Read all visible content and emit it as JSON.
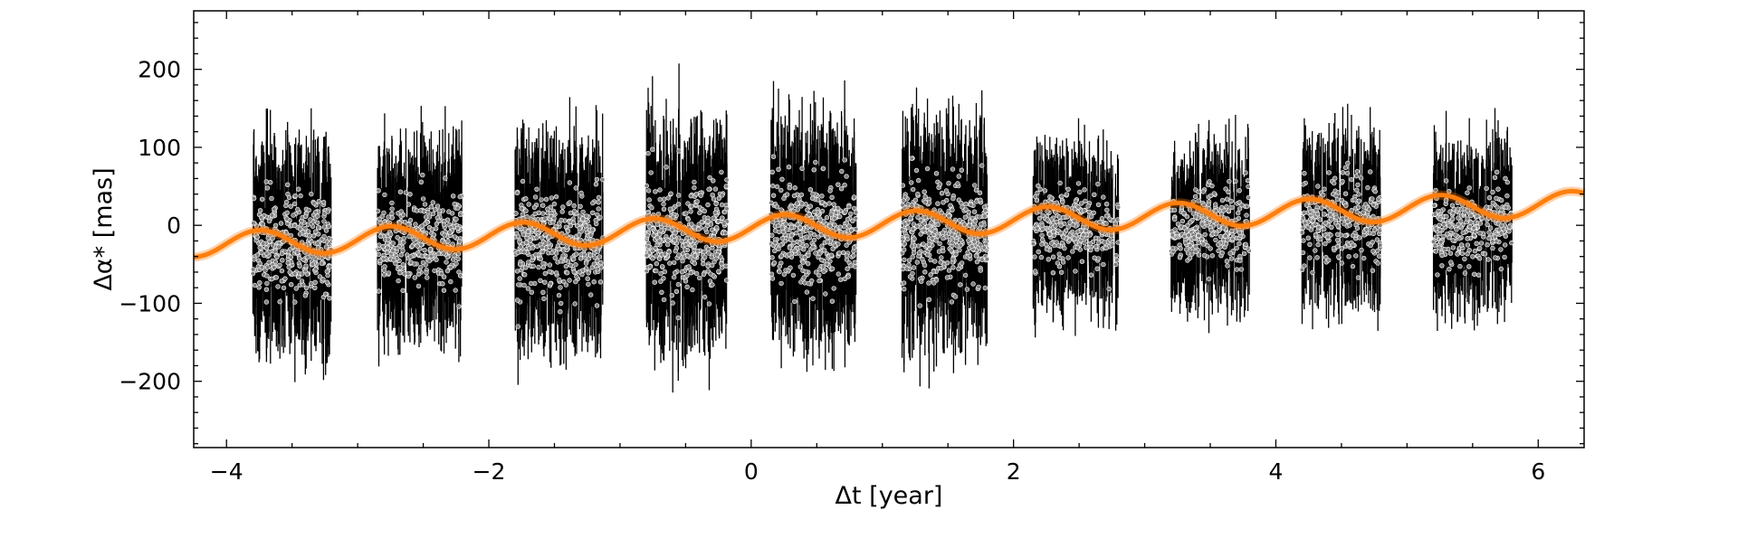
{
  "chart_data": {
    "type": "scatter",
    "xlabel": "Δt [year]",
    "ylabel": "Δα* [mas]",
    "xlim": [
      -4.25,
      6.35
    ],
    "ylim": [
      -285,
      275
    ],
    "x_ticks": [
      -4,
      -2,
      0,
      2,
      4,
      6
    ],
    "x_tick_labels": [
      "−4",
      "−2",
      "0",
      "2",
      "4",
      "6"
    ],
    "y_ticks": [
      -200,
      -100,
      0,
      100,
      200
    ],
    "y_tick_labels": [
      "−200",
      "−100",
      "0",
      "100",
      "200"
    ],
    "grid": false,
    "observation_groups": [
      {
        "x_start": -3.8,
        "x_end": -3.2,
        "n_points": 380,
        "y_center": -25,
        "y_spread": 55,
        "err_max": 110
      },
      {
        "x_start": -2.85,
        "x_end": -2.2,
        "n_points": 360,
        "y_center": -20,
        "y_spread": 55,
        "err_max": 105
      },
      {
        "x_start": -1.8,
        "x_end": -1.13,
        "n_points": 420,
        "y_center": -20,
        "y_spread": 60,
        "err_max": 110
      },
      {
        "x_start": -0.8,
        "x_end": -0.18,
        "n_points": 420,
        "y_center": -15,
        "y_spread": 60,
        "err_max": 115
      },
      {
        "x_start": 0.15,
        "x_end": 0.8,
        "n_points": 420,
        "y_center": -10,
        "y_spread": 60,
        "err_max": 115
      },
      {
        "x_start": 1.15,
        "x_end": 1.8,
        "n_points": 420,
        "y_center": -10,
        "y_spread": 60,
        "err_max": 115
      },
      {
        "x_start": 2.15,
        "x_end": 2.8,
        "n_points": 300,
        "y_center": -5,
        "y_spread": 45,
        "err_max": 90
      },
      {
        "x_start": 3.2,
        "x_end": 3.8,
        "n_points": 300,
        "y_center": 0,
        "y_spread": 45,
        "err_max": 90
      },
      {
        "x_start": 4.2,
        "x_end": 4.8,
        "n_points": 300,
        "y_center": 5,
        "y_spread": 45,
        "err_max": 90
      },
      {
        "x_start": 5.2,
        "x_end": 5.8,
        "n_points": 300,
        "y_center": 0,
        "y_spread": 45,
        "err_max": 90
      }
    ],
    "model_curve": {
      "label": "",
      "color": "#ff7f0e",
      "trend_slope_mas_per_year": 5.0,
      "trend_offset_mas": -3.5,
      "amplitude_mas": 16,
      "period_year": 1.0,
      "phase_year": 0.0
    },
    "colors": {
      "points_face": "#808080",
      "points_edge": "#ffffff",
      "errorbar": "#000000",
      "axes": "#000000"
    }
  }
}
